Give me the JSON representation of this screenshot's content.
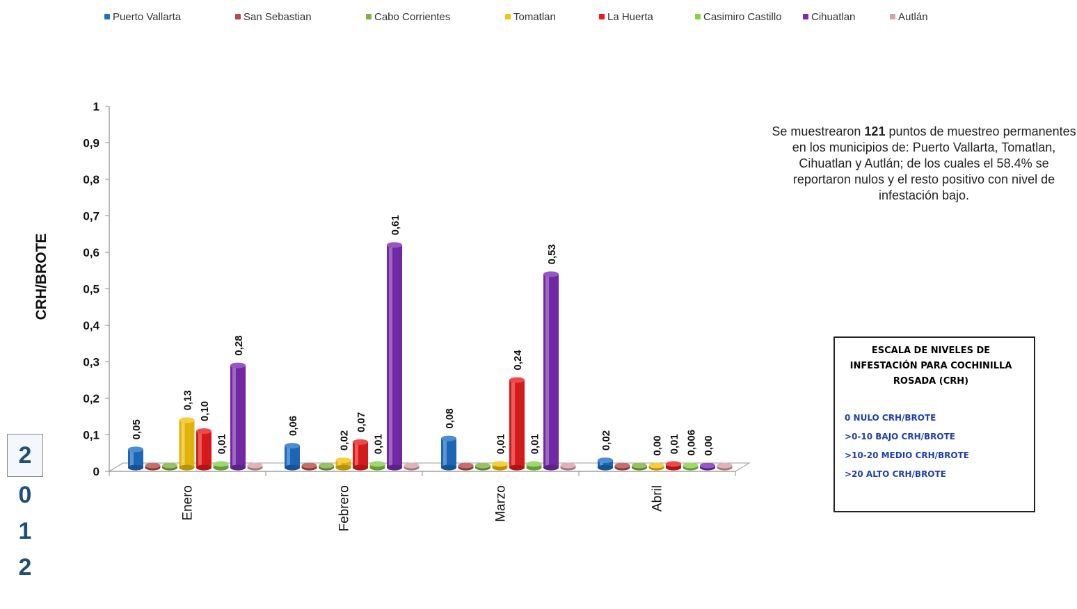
{
  "chart_data": {
    "type": "bar",
    "ylabel": "CRH/BROTE",
    "ylim": [
      0,
      1
    ],
    "yticks": [
      "0",
      "0,1",
      "0,2",
      "0,3",
      "0,4",
      "0,5",
      "0,6",
      "0,7",
      "0,8",
      "0,9",
      "1"
    ],
    "categories": [
      "Enero",
      "Febrero",
      "Marzo",
      "Abril"
    ],
    "legend_position": "top",
    "series": [
      {
        "name": "Puerto Vallarta",
        "color": "#1f6fc5",
        "values": [
          0.05,
          0.06,
          0.08,
          0.02
        ],
        "labels": [
          "0,05",
          "0,06",
          "0,08",
          "0,02"
        ]
      },
      {
        "name": "San Sebastian",
        "color": "#b84a4a",
        "values": [
          0,
          0,
          0,
          0
        ],
        "labels": [
          "",
          "",
          "",
          ""
        ]
      },
      {
        "name": "Cabo Corrientes",
        "color": "#7fb03f",
        "values": [
          0,
          0,
          0,
          0
        ],
        "labels": [
          "",
          "",
          "",
          ""
        ]
      },
      {
        "name": "Tomatlan",
        "color": "#f4c20d",
        "values": [
          0.13,
          0.02,
          0.01,
          0.0
        ],
        "labels": [
          "0,13",
          "0,02",
          "0,01",
          "0,00"
        ]
      },
      {
        "name": "La Huerta",
        "color": "#e81c1c",
        "values": [
          0.1,
          0.07,
          0.24,
          0.01
        ],
        "labels": [
          "0,10",
          "0,07",
          "0,24",
          "0,01"
        ]
      },
      {
        "name": "Casimiro Castillo",
        "color": "#86d04a",
        "values": [
          0.01,
          0.01,
          0.01,
          0.006
        ],
        "labels": [
          "0,01",
          "0,01",
          "0,01",
          "0,006"
        ]
      },
      {
        "name": "Cihuatlan",
        "color": "#7a2db0",
        "values": [
          0.28,
          0.61,
          0.53,
          0.0
        ],
        "labels": [
          "0,28",
          "0,61",
          "0,53",
          "0,00"
        ]
      },
      {
        "name": "Autlán",
        "color": "#d9a0a6",
        "values": [
          0,
          0,
          0,
          0
        ],
        "labels": [
          "",
          "",
          "",
          ""
        ]
      }
    ]
  },
  "note": {
    "before": "Se muestrearon ",
    "bold": "121",
    "after": " puntos de muestreo permanentes en los municipios de: Puerto Vallarta, Tomatlan, Cihuatlan y Autlán; de los cuales el 58.4% se reportaron nulos y el resto positivo con nivel de infestación bajo."
  },
  "scale": {
    "title": "ESCALA DE NIVELES DE INFESTACIÓN PARA COCHINILLA ROSADA (CRH)",
    "levels": [
      "0 NULO   CRH/BROTE",
      ">0-10 BAJO CRH/BROTE",
      ">10-20 MEDIO CRH/BROTE",
      ">20 ALTO CRH/BROTE"
    ]
  },
  "year_digits": [
    "2",
    "0",
    "1",
    "2"
  ]
}
